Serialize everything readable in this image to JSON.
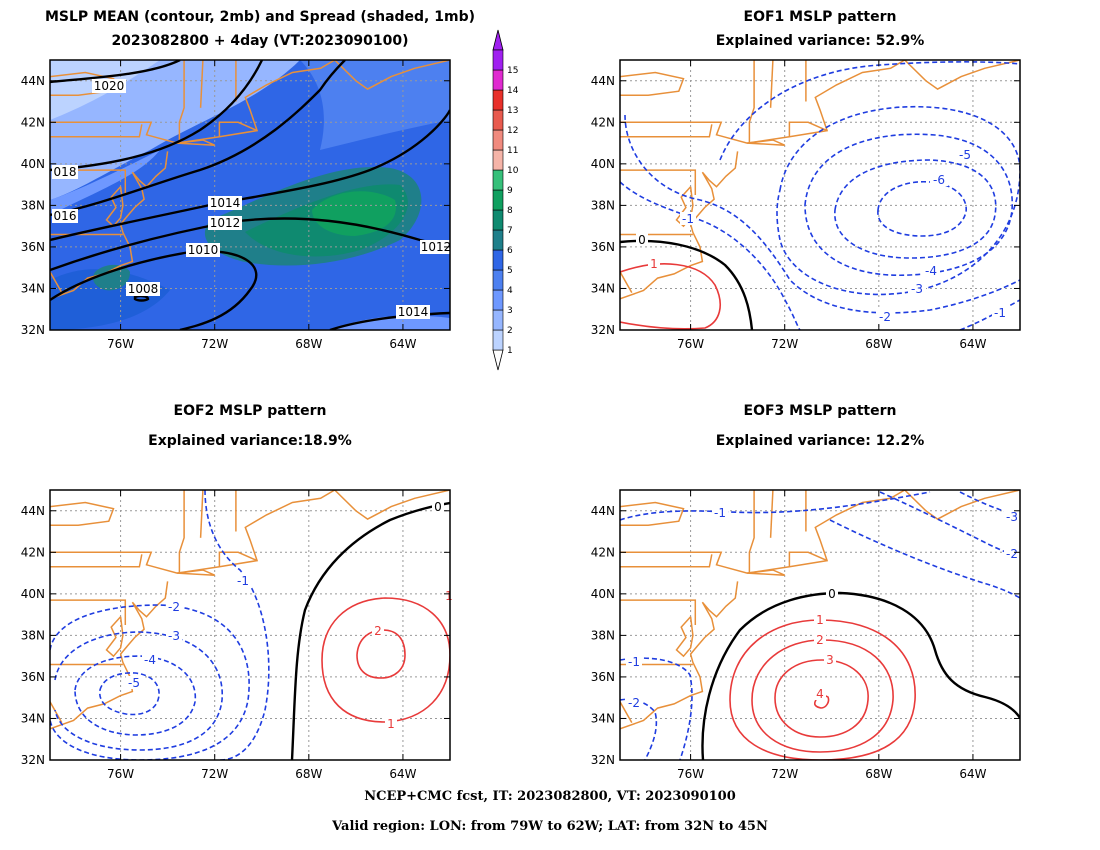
{
  "footer": {
    "line1": "NCEP+CMC fcst, IT: 2023082800, VT: 2023090100",
    "line2": "Valid region: LON: from 79W to 62W; LAT: from 32N to 45N"
  },
  "colors": {
    "coast": "#e8903a",
    "positive": "#e83a3a",
    "negative": "#1f3de0",
    "zero": "#000000",
    "grid": "#999999"
  },
  "chart_data": [
    {
      "type": "heatmap",
      "panel": "mean-spread",
      "title": "MSLP MEAN (contour, 2mb) and Spread (shaded, 1mb)",
      "subtitle": "2023082800 + 4day (VT:2023090100)",
      "x_ticks": [
        "76W",
        "72W",
        "68W",
        "64W"
      ],
      "y_ticks": [
        "32N",
        "34N",
        "36N",
        "38N",
        "40N",
        "42N",
        "44N"
      ],
      "xlim": [
        -79,
        -62
      ],
      "ylim": [
        32,
        45
      ],
      "contour_labels": [
        "1020",
        "018",
        "016",
        "1014",
        "1012",
        "1010",
        "1008",
        "1012",
        "1014"
      ],
      "colorbar": {
        "levels": [
          "1",
          "2",
          "3",
          "4",
          "5",
          "6",
          "7",
          "8",
          "9",
          "10",
          "11",
          "12",
          "13",
          "14",
          "15"
        ],
        "colors": [
          "#bcd3ff",
          "#96b6ff",
          "#6e98ff",
          "#4d80f0",
          "#2f66e6",
          "#1f7f8a",
          "#0f8a70",
          "#10a060",
          "#36c07a",
          "#f5b4a8",
          "#f08a7e",
          "#e85a4e",
          "#e8302a",
          "#e02ad0",
          "#a020f0"
        ]
      }
    },
    {
      "type": "line",
      "panel": "eof1",
      "title": "EOF1 MSLP pattern",
      "subtitle": "Explained variance: 52.9%",
      "x_ticks": [
        "76W",
        "72W",
        "68W",
        "64W"
      ],
      "y_ticks": [
        "32N",
        "34N",
        "36N",
        "38N",
        "40N",
        "42N",
        "44N"
      ],
      "xlim": [
        -79,
        -62
      ],
      "ylim": [
        32,
        45
      ],
      "contour_labels": [
        "0",
        "1",
        "-1",
        "-2",
        "-3",
        "-4",
        "-5",
        "-6",
        "-1"
      ]
    },
    {
      "type": "line",
      "panel": "eof2",
      "title": "EOF2 MSLP pattern",
      "subtitle": "Explained variance:18.9%",
      "x_ticks": [
        "76W",
        "72W",
        "68W",
        "64W"
      ],
      "y_ticks": [
        "32N",
        "34N",
        "36N",
        "38N",
        "40N",
        "42N",
        "44N"
      ],
      "xlim": [
        -79,
        -62
      ],
      "ylim": [
        32,
        45
      ],
      "contour_labels": [
        "0",
        "1",
        "-1",
        "-2",
        "-3",
        "-4",
        "-5",
        "2",
        "1"
      ]
    },
    {
      "type": "line",
      "panel": "eof3",
      "title": "EOF3 MSLP pattern",
      "subtitle": "Explained variance: 12.2%",
      "x_ticks": [
        "76W",
        "72W",
        "68W",
        "64W"
      ],
      "y_ticks": [
        "32N",
        "34N",
        "36N",
        "38N",
        "40N",
        "42N",
        "44N"
      ],
      "xlim": [
        -79,
        -62
      ],
      "ylim": [
        32,
        45
      ],
      "contour_labels": [
        "0",
        "1",
        "2",
        "3",
        "4",
        "-1",
        "-2",
        "-1",
        "-3",
        "-2"
      ]
    }
  ]
}
